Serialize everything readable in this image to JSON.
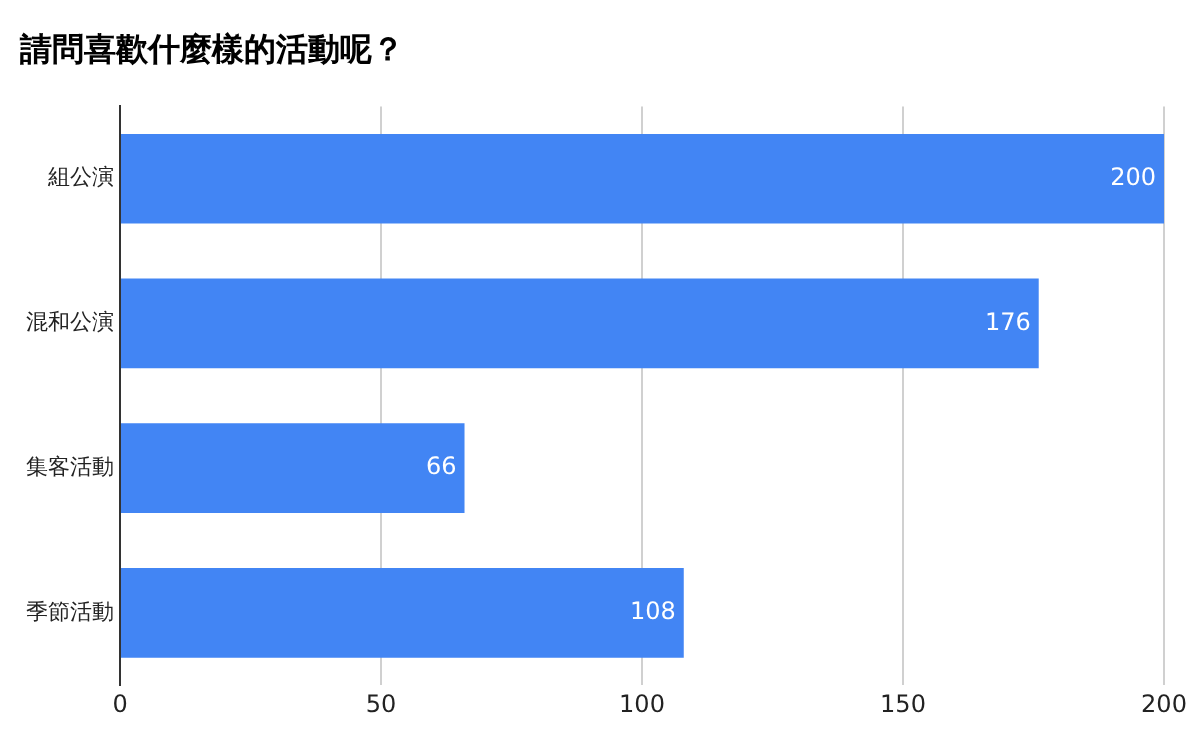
{
  "chart_data": {
    "type": "bar",
    "orientation": "horizontal",
    "title": "請問喜歡什麼樣的活動呢？",
    "categories": [
      "組公演",
      "混和公演",
      "集客活動",
      "季節活動"
    ],
    "values": [
      200,
      176,
      66,
      108
    ],
    "color": "#4285f4",
    "xlim": [
      0,
      200
    ],
    "xticks": [
      0,
      50,
      100,
      150,
      200
    ],
    "grid": "x",
    "data_labels": true,
    "legend": false
  }
}
